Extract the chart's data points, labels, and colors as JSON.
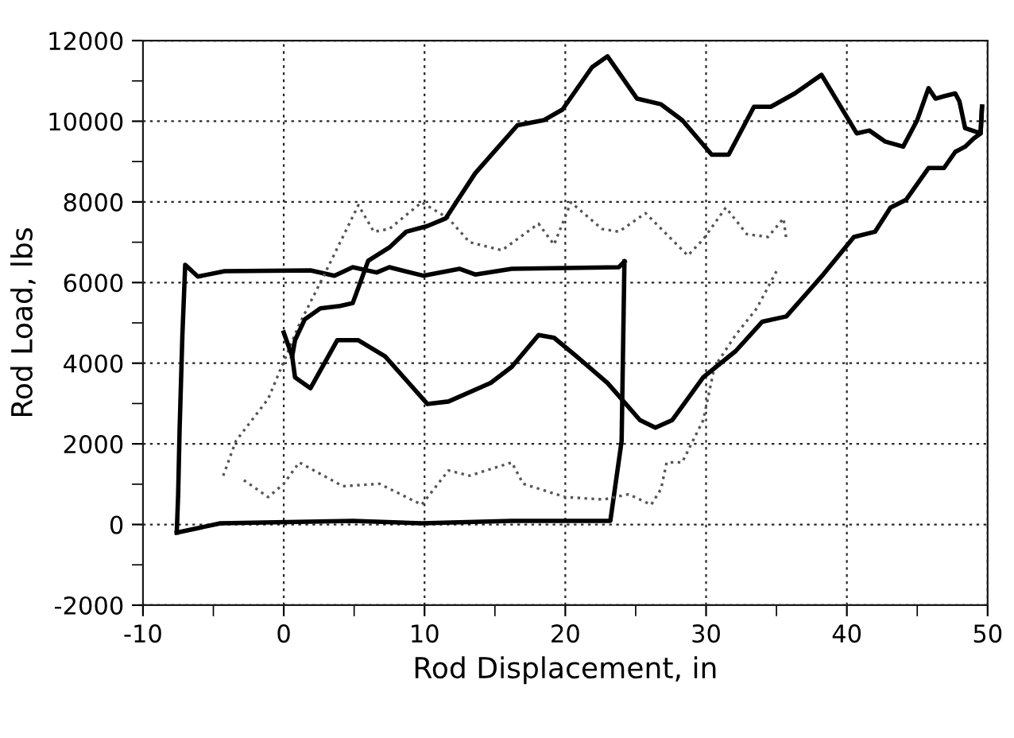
{
  "chart_data": {
    "type": "line",
    "xlabel": "Rod Displacement, in",
    "ylabel": "Rod Load, lbs",
    "xlim": [
      -10,
      50
    ],
    "ylim": [
      -2000,
      12000
    ],
    "xticks": [
      -10,
      {
        "value": -5,
        "label": null
      },
      0,
      {
        "value": 5,
        "label": null
      },
      10,
      {
        "value": 15,
        "label": null
      },
      20,
      {
        "value": 25,
        "label": null
      },
      30,
      {
        "value": 35,
        "label": null
      },
      40,
      {
        "value": 45,
        "label": null
      },
      50
    ],
    "yticks": [
      -2000,
      {
        "value": -1000,
        "label": null
      },
      0,
      {
        "value": 1000,
        "label": null
      },
      2000,
      {
        "value": 3000,
        "label": null
      },
      4000,
      {
        "value": 5000,
        "label": null
      },
      6000,
      {
        "value": 7000,
        "label": null
      },
      8000,
      {
        "value": 9000,
        "label": null
      },
      10000,
      {
        "value": 11000,
        "label": null
      },
      12000
    ],
    "grid": true,
    "marker": "none",
    "series": [
      {
        "color": "#000000",
        "line_style": "solid",
        "x": [
          -7.6,
          -7.5,
          -7.4,
          -7.2,
          -7.0,
          -6.1,
          -4.2,
          1.9,
          3.6,
          4.9,
          6.6,
          7.5,
          9.9,
          12.5,
          13.6,
          16.2,
          23.8,
          24.2
        ],
        "values": [
          -200,
          750,
          2330,
          4700,
          6440,
          6150,
          6280,
          6300,
          6170,
          6380,
          6250,
          6380,
          6170,
          6340,
          6200,
          6340,
          6380,
          6520
        ]
      },
      {
        "color": "#000000",
        "line_style": "solid",
        "x": [
          24.2,
          24.0,
          23.2,
          23.1,
          16.2,
          9.8,
          4.9,
          -4.5,
          -7.2,
          -7.6
        ],
        "values": [
          6520,
          2070,
          90,
          90,
          90,
          30,
          90,
          30,
          -170,
          -200
        ]
      },
      {
        "color": "#555555",
        "line_style": "dotted",
        "x": [
          -4.3,
          -3.4,
          -1.1,
          0,
          1.1,
          3.0,
          5.3,
          6.4,
          7.5,
          9.8,
          11.7,
          13.2,
          15.5,
          18.1,
          19.2,
          20.4,
          22.6,
          23.8,
          25.7,
          28.7,
          29.8,
          31.4,
          32.9,
          34.4,
          35.5,
          35.7
        ],
        "values": [
          1210,
          2070,
          3120,
          4040,
          4960,
          6280,
          7920,
          7260,
          7330,
          7990,
          7590,
          7000,
          6800,
          7460,
          6940,
          7990,
          7330,
          7260,
          7720,
          6670,
          7070,
          7860,
          7200,
          7130,
          7590,
          7070
        ]
      },
      {
        "color": "#555555",
        "line_style": "dotted",
        "x": [
          35.0,
          33.6,
          32.1,
          30.6,
          29.8,
          28.3,
          27.2,
          26.8,
          26.1,
          24.5,
          22.7,
          20.0,
          17.0,
          16.2,
          13.2,
          11.7,
          9.8,
          6.8,
          4.2,
          1.1,
          0,
          -1.1,
          -3.0
        ],
        "values": [
          6280,
          5360,
          4700,
          3910,
          2590,
          1540,
          1540,
          880,
          490,
          750,
          620,
          680,
          1010,
          1540,
          1210,
          1340,
          490,
          1010,
          950,
          1540,
          1010,
          680,
          1140
        ]
      },
      {
        "color": "#000000",
        "line_style": "solid",
        "x": [
          0,
          0.6,
          0.8,
          1.9,
          3.8,
          5.3,
          7.2,
          10.2,
          11.7,
          14.7,
          16.2,
          18.1,
          19.2,
          20.8,
          23.0,
          25.3,
          26.4,
          27.6,
          29.8,
          32.1,
          34.0,
          35.7,
          38.2,
          40.5,
          42.0,
          43.1,
          44.2,
          45.8,
          46.9,
          47.7,
          48.4,
          49.0,
          49.5,
          49.6
        ],
        "values": [
          4760,
          4170,
          3650,
          3380,
          4570,
          4570,
          4170,
          2990,
          3050,
          3510,
          3910,
          4700,
          4630,
          4170,
          3510,
          2590,
          2400,
          2590,
          3650,
          4300,
          5030,
          5160,
          6150,
          7130,
          7260,
          7860,
          8050,
          8840,
          8840,
          9240,
          9370,
          9570,
          9700,
          10360
        ]
      },
      {
        "color": "#000000",
        "line_style": "solid",
        "x": [
          49.6,
          49.5,
          48.4,
          48.0,
          47.7,
          46.9,
          46.3,
          45.8,
          45.0,
          44.0,
          42.7,
          41.6,
          40.7,
          38.2,
          36.3,
          34.6,
          33.4,
          31.6,
          30.4,
          28.3,
          26.8,
          25.1,
          23.0,
          21.9,
          19.8,
          18.5,
          16.6,
          13.6,
          11.5,
          10.2,
          8.7,
          7.5,
          6.0,
          4.9,
          4.0,
          2.6,
          1.5,
          0.8,
          0.6
        ],
        "values": [
          10360,
          9700,
          9830,
          10490,
          10690,
          10620,
          10560,
          10820,
          10030,
          9370,
          9500,
          9770,
          9700,
          11150,
          10690,
          10360,
          10360,
          9170,
          9170,
          10030,
          10420,
          10560,
          11610,
          11340,
          10290,
          10030,
          9900,
          8710,
          7590,
          7400,
          7260,
          6870,
          6540,
          5490,
          5420,
          5360,
          5090,
          4570,
          4170
        ]
      }
    ]
  }
}
